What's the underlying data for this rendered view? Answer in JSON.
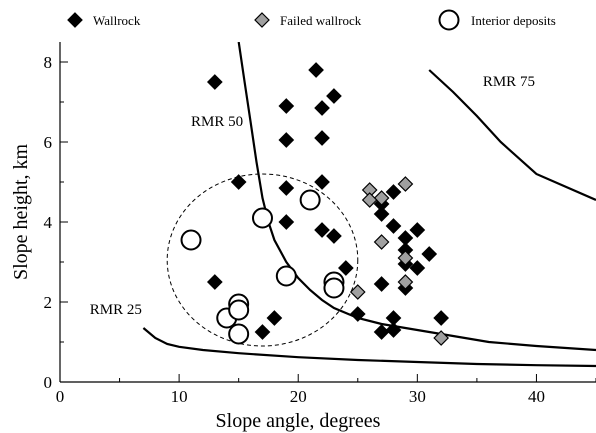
{
  "chart_data": {
    "type": "scatter",
    "xlabel": "Slope angle, degrees",
    "ylabel": "Slope height, km",
    "xlim": [
      0,
      45
    ],
    "ylim": [
      0,
      8.5
    ],
    "xticks": [
      0,
      10,
      20,
      30,
      40
    ],
    "yticks": [
      0,
      2,
      4,
      6,
      8
    ],
    "grid": false,
    "legend_position": "top",
    "series": [
      {
        "name": "Wallrock",
        "marker": "diamond",
        "color": "#000000",
        "points": [
          [
            13,
            7.5
          ],
          [
            21.5,
            7.8
          ],
          [
            19,
            6.9
          ],
          [
            22,
            6.85
          ],
          [
            23,
            7.15
          ],
          [
            19,
            6.05
          ],
          [
            22,
            6.1
          ],
          [
            15,
            5.0
          ],
          [
            22,
            5.0
          ],
          [
            19,
            4.85
          ],
          [
            19,
            4.0
          ],
          [
            22,
            3.8
          ],
          [
            23,
            3.65
          ],
          [
            24,
            2.85
          ],
          [
            13,
            2.5
          ],
          [
            14,
            1.65
          ],
          [
            18,
            1.6
          ],
          [
            17,
            1.25
          ],
          [
            25,
            1.7
          ],
          [
            27,
            4.45
          ],
          [
            28,
            4.75
          ],
          [
            27,
            4.2
          ],
          [
            28,
            3.9
          ],
          [
            29,
            3.6
          ],
          [
            30,
            3.8
          ],
          [
            29,
            3.3
          ],
          [
            29,
            2.95
          ],
          [
            30,
            2.85
          ],
          [
            31,
            3.2
          ],
          [
            29,
            2.35
          ],
          [
            27,
            2.45
          ],
          [
            28,
            1.6
          ],
          [
            27,
            1.25
          ],
          [
            28,
            1.3
          ],
          [
            32,
            1.6
          ]
        ]
      },
      {
        "name": "Failed wallrock",
        "marker": "diamond",
        "color": "#a0a0a0",
        "points": [
          [
            26,
            4.8
          ],
          [
            29,
            4.95
          ],
          [
            27,
            4.6
          ],
          [
            26,
            4.55
          ],
          [
            27,
            3.5
          ],
          [
            29,
            3.1
          ],
          [
            29,
            2.5
          ],
          [
            25,
            2.25
          ],
          [
            32,
            1.1
          ]
        ]
      },
      {
        "name": "Interior deposits",
        "marker": "circle",
        "color": "#ffffff",
        "points": [
          [
            11,
            3.55
          ],
          [
            17,
            4.1
          ],
          [
            21,
            4.55
          ],
          [
            19,
            2.65
          ],
          [
            23,
            2.5
          ],
          [
            23,
            2.35
          ],
          [
            14,
            1.6
          ],
          [
            15,
            1.95
          ],
          [
            15,
            1.8
          ],
          [
            15,
            1.2
          ]
        ]
      }
    ],
    "curves": [
      {
        "name": "RMR 25",
        "label": "RMR 25",
        "points": [
          [
            7,
            1.35
          ],
          [
            8,
            1.1
          ],
          [
            9,
            0.95
          ],
          [
            10,
            0.88
          ],
          [
            12,
            0.8
          ],
          [
            15,
            0.72
          ],
          [
            20,
            0.62
          ],
          [
            25,
            0.55
          ],
          [
            30,
            0.5
          ],
          [
            35,
            0.45
          ],
          [
            40,
            0.42
          ],
          [
            45,
            0.4
          ]
        ]
      },
      {
        "name": "RMR 50",
        "label": "RMR 50",
        "points": [
          [
            15,
            8.5
          ],
          [
            15.5,
            7.5
          ],
          [
            16,
            6.5
          ],
          [
            16.5,
            5.5
          ],
          [
            17,
            4.6
          ],
          [
            17.5,
            4.0
          ],
          [
            18,
            3.55
          ],
          [
            19,
            3.0
          ],
          [
            20,
            2.6
          ],
          [
            21,
            2.3
          ],
          [
            22,
            2.05
          ],
          [
            23,
            1.85
          ],
          [
            25,
            1.6
          ],
          [
            27,
            1.45
          ],
          [
            30,
            1.3
          ],
          [
            33,
            1.15
          ],
          [
            36,
            1.0
          ],
          [
            40,
            0.9
          ],
          [
            45,
            0.8
          ]
        ]
      },
      {
        "name": "RMR 75",
        "label": "RMR 75",
        "points": [
          [
            31,
            7.8
          ],
          [
            33,
            7.25
          ],
          [
            35,
            6.65
          ],
          [
            37,
            6.0
          ],
          [
            40,
            5.2
          ],
          [
            45,
            4.55
          ]
        ]
      }
    ],
    "annotations": [
      {
        "text": "RMR 50",
        "x": 11,
        "y": 6.4
      },
      {
        "text": "RMR 75",
        "x": 35.5,
        "y": 7.4
      },
      {
        "text": "RMR 25",
        "x": 2.5,
        "y": 1.7
      }
    ],
    "highlight_circle": {
      "style": "dashed",
      "center": [
        17,
        3.05
      ],
      "radius_x_units": 8,
      "radius_y_units": 2.15
    }
  }
}
